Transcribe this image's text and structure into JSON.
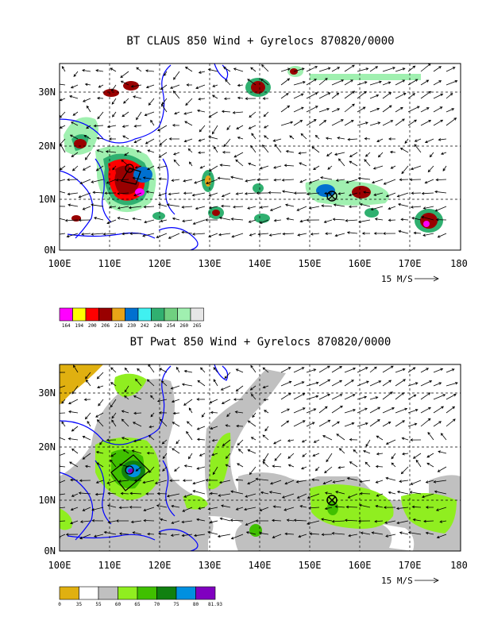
{
  "top": {
    "title": "BT CLAUS 850 Wind + Gyrelocs 870820/0000",
    "legend_values": [
      "164",
      "194",
      "200",
      "206",
      "218",
      "230",
      "242",
      "248",
      "254",
      "260",
      "265"
    ],
    "legend_colors": [
      "#ff00ff",
      "#ffff00",
      "#ff0000",
      "#990000",
      "#e8a317",
      "#0070d0",
      "#40f0f0",
      "#30b070",
      "#70d080",
      "#a0f0b0",
      "#e6e6e6"
    ]
  },
  "bottom": {
    "title": "BT Pwat 850 Wind + Gyrelocs 870820/0000",
    "legend_values": [
      "0",
      "35",
      "55",
      "60",
      "65",
      "70",
      "75",
      "80",
      "81.93"
    ],
    "legend_colors": [
      "#e0b010",
      "#ffffff",
      "#c0c0c0",
      "#90ee20",
      "#40c000",
      "#108010",
      "#0090e0",
      "#8000c0"
    ]
  },
  "axes": {
    "x_ticks": [
      "100E",
      "110E",
      "120E",
      "130E",
      "140E",
      "150E",
      "160E",
      "170E",
      "180"
    ],
    "y_ticks": [
      "0N",
      "10N",
      "20N",
      "30N"
    ],
    "vector_label": "15 M/S"
  }
}
